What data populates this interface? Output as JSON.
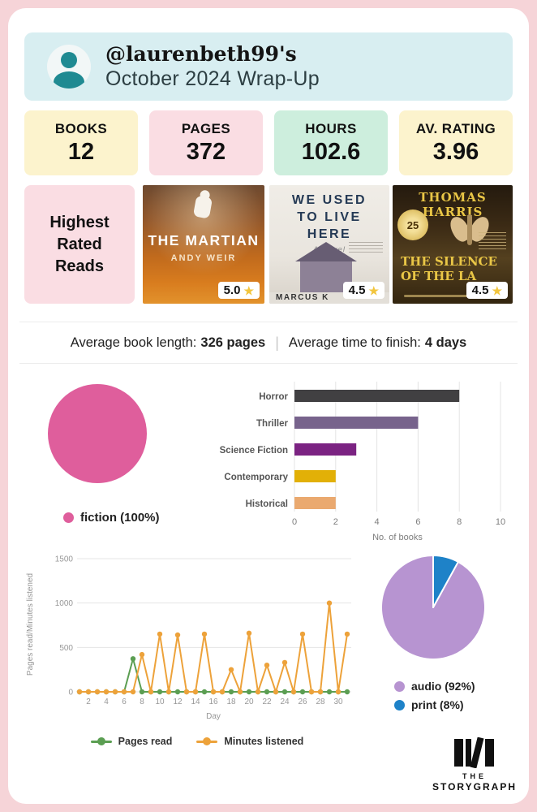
{
  "colors": {
    "background": "#f6d4d8",
    "card": "#ffffff",
    "header_bg": "#d8eef1",
    "accent_teal": "#1f8a92",
    "star_gold": "#f2c53d"
  },
  "header": {
    "username": "@laurenbeth99's",
    "title": "October 2024 Wrap-Up"
  },
  "stats": [
    {
      "label": "BOOKS",
      "value": "12",
      "bg": "#fcf3cd"
    },
    {
      "label": "PAGES",
      "value": "372",
      "bg": "#fadde3"
    },
    {
      "label": "HOURS",
      "value": "102.6",
      "bg": "#cdeedd"
    },
    {
      "label": "AV. RATING",
      "value": "3.96",
      "bg": "#fcf3cd"
    }
  ],
  "highest_rated": {
    "heading": "Highest Rated Reads",
    "books": [
      {
        "title": "THE MARTIAN",
        "author": "ANDY WEIR",
        "rating": "5.0"
      },
      {
        "title_l1": "WE USED",
        "title_l2": "TO LIVE",
        "title_l3": "HERE",
        "subtitle": "A Novel",
        "author": "MARCUS K",
        "rating": "4.5"
      },
      {
        "author": "THOMAS HARRIS",
        "badge": "25",
        "title_l1": "THE SILENCE",
        "title_l2": "OF THE LA",
        "rating": "4.5"
      }
    ]
  },
  "averages": {
    "length_label": "Average book length:",
    "length_value": "326 pages",
    "divider": "|",
    "finish_label": "Average time to finish:",
    "finish_value": "4 days"
  },
  "chart_data": [
    {
      "type": "pie",
      "name": "genres",
      "slices": [
        {
          "label": "fiction",
          "pct": 100,
          "color": "#df5e9c",
          "legend": "fiction (100%)"
        }
      ]
    },
    {
      "type": "bar",
      "name": "moods-genres",
      "orientation": "horizontal",
      "categories": [
        "Horror",
        "Thriller",
        "Science Fiction",
        "Contemporary",
        "Historical"
      ],
      "values": [
        8,
        6,
        3,
        2,
        2
      ],
      "colors": [
        "#414042",
        "#77638c",
        "#7b2382",
        "#e2b007",
        "#eaa96f"
      ],
      "xlabel": "No. of books",
      "xlim": [
        0,
        10
      ],
      "xticks": [
        0,
        2,
        4,
        6,
        8,
        10
      ],
      "grid": true
    },
    {
      "type": "line",
      "name": "daily-reading",
      "xlabel": "Day",
      "ylabel": "Pages read/Minutes listened",
      "ylim": [
        0,
        1500
      ],
      "yticks": [
        0,
        500,
        1000,
        1500
      ],
      "xticks": [
        2,
        4,
        6,
        8,
        10,
        12,
        14,
        16,
        18,
        20,
        22,
        24,
        26,
        28,
        30
      ],
      "x_range": [
        1,
        31
      ],
      "series": [
        {
          "name": "Pages read",
          "color": "#5b9e52",
          "values": [
            0,
            0,
            0,
            0,
            0,
            0,
            372,
            0,
            0,
            0,
            0,
            0,
            0,
            0,
            0,
            0,
            0,
            0,
            0,
            0,
            0,
            0,
            0,
            0,
            0,
            0,
            0,
            0,
            0,
            0,
            0
          ]
        },
        {
          "name": "Minutes listened",
          "color": "#eda23a",
          "values": [
            0,
            0,
            0,
            0,
            0,
            0,
            0,
            420,
            0,
            650,
            0,
            640,
            0,
            0,
            650,
            0,
            0,
            250,
            0,
            660,
            0,
            300,
            0,
            330,
            0,
            650,
            0,
            0,
            1000,
            0,
            650
          ]
        }
      ],
      "legend_position": "bottom"
    },
    {
      "type": "pie",
      "name": "formats",
      "start_deg": 28.8,
      "slices": [
        {
          "label": "audio",
          "pct": 92,
          "color": "#b794d1",
          "legend": "audio (92%)"
        },
        {
          "label": "print",
          "pct": 8,
          "color": "#1e82c8",
          "legend": "print (8%)"
        }
      ]
    }
  ],
  "logo": {
    "line1": "THE",
    "line2": "STORYGRAPH"
  }
}
